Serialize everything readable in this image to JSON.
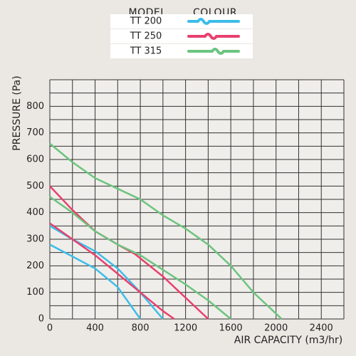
{
  "chart_data": {
    "type": "line",
    "legend_header": [
      "MODEL",
      "COLOUR"
    ],
    "x_label": "AIR CAPACITY (m3/hr)",
    "y_label": "PRESSURE (Pa)",
    "xlim": [
      0,
      2600
    ],
    "ylim": [
      0,
      900
    ],
    "xticks": [
      0,
      400,
      800,
      1200,
      1600,
      2000,
      2400
    ],
    "yticks": [
      0,
      100,
      200,
      300,
      400,
      500,
      600,
      700,
      800
    ],
    "xgrid": [
      0,
      200,
      400,
      600,
      800,
      1000,
      1200,
      1400,
      1600,
      1800,
      2000,
      2200,
      2400,
      2600
    ],
    "ygrid": [
      0,
      50,
      100,
      150,
      200,
      250,
      300,
      350,
      400,
      450,
      500,
      550,
      600,
      650,
      700,
      750,
      800,
      850,
      900
    ],
    "series": [
      {
        "name": "TT 200",
        "color": "#3bbde8",
        "lines": [
          {
            "x": [
              0,
              200,
              400,
              600,
              800,
              1000
            ],
            "values": [
              350,
              300,
              255,
              190,
              100,
              0
            ]
          },
          {
            "x": [
              0,
              200,
              400,
              600,
              800
            ],
            "values": [
              280,
              235,
              190,
              120,
              0
            ]
          }
        ]
      },
      {
        "name": "TT 250",
        "color": "#e8406f",
        "lines": [
          {
            "x": [
              0,
              200,
              400,
              600,
              750,
              1000,
              1200,
              1400
            ],
            "values": [
              500,
              410,
              330,
              280,
              245,
              160,
              80,
              0
            ]
          },
          {
            "x": [
              0,
              200,
              400,
              600,
              800,
              1000,
              1100
            ],
            "values": [
              360,
              300,
              240,
              170,
              100,
              30,
              0
            ]
          }
        ]
      },
      {
        "name": "TT 315",
        "color": "#6cc47f",
        "lines": [
          {
            "x": [
              0,
              200,
              400,
              600,
              800,
              1000,
              1200,
              1400,
              1600,
              1800,
              2050
            ],
            "values": [
              660,
              590,
              530,
              490,
              450,
              390,
              340,
              280,
              200,
              100,
              0
            ]
          },
          {
            "x": [
              0,
              200,
              400,
              600,
              800,
              1000,
              1200,
              1400,
              1600
            ],
            "values": [
              460,
              400,
              330,
              280,
              240,
              185,
              130,
              70,
              0
            ]
          }
        ]
      }
    ]
  }
}
